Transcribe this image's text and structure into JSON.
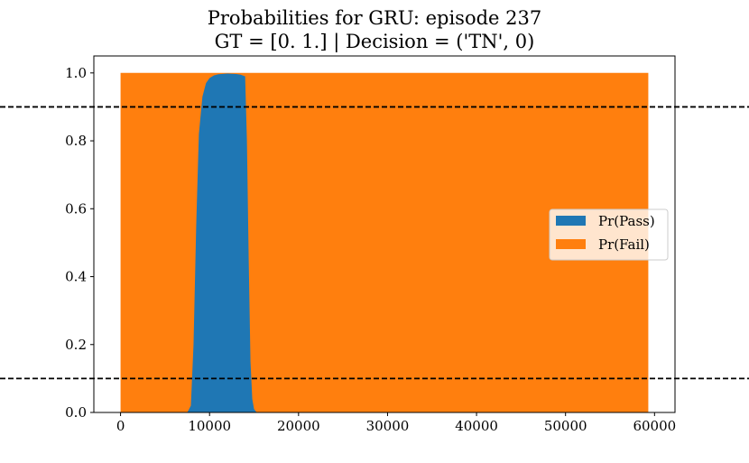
{
  "chart_data": {
    "type": "area",
    "title": "Probabilities for GRU: episode 237",
    "subtitle": "GT = [0. 1.] | Decision = ('TN', 0)",
    "xlabel": "",
    "ylabel": "",
    "xlim": [
      -3000,
      62300
    ],
    "ylim": [
      0.0,
      1.05
    ],
    "x_ticks": [
      0,
      10000,
      20000,
      30000,
      40000,
      50000,
      60000
    ],
    "y_ticks": [
      0.0,
      0.2,
      0.4,
      0.6,
      0.8,
      1.0
    ],
    "x_tick_labels": [
      "0",
      "10000",
      "20000",
      "30000",
      "40000",
      "50000",
      "60000"
    ],
    "y_tick_labels": [
      "0.0",
      "0.2",
      "0.4",
      "0.6",
      "0.8",
      "1.0"
    ],
    "legend_position": "center-right",
    "grid": false,
    "series": [
      {
        "name": "Pr(Fail)",
        "color": "#ff7f0e",
        "x": [
          0,
          59300
        ],
        "y": [
          1.0,
          1.0
        ]
      },
      {
        "name": "Pr(Pass)",
        "color": "#1f77b4",
        "x": [
          0,
          7500,
          7900,
          8200,
          8500,
          8800,
          9200,
          9600,
          10000,
          10500,
          11000,
          12000,
          13000,
          13500,
          14000,
          14200,
          14400,
          14600,
          14800,
          15000,
          15300,
          59300
        ],
        "y": [
          0.0,
          0.0,
          0.02,
          0.2,
          0.55,
          0.82,
          0.93,
          0.97,
          0.985,
          0.993,
          0.996,
          0.998,
          0.997,
          0.995,
          0.99,
          0.8,
          0.45,
          0.15,
          0.04,
          0.01,
          0.0,
          0.0
        ]
      }
    ],
    "hlines": [
      {
        "y": 0.9,
        "style": "dashed",
        "color": "#000000"
      },
      {
        "y": 0.1,
        "style": "dashed",
        "color": "#000000"
      }
    ]
  }
}
